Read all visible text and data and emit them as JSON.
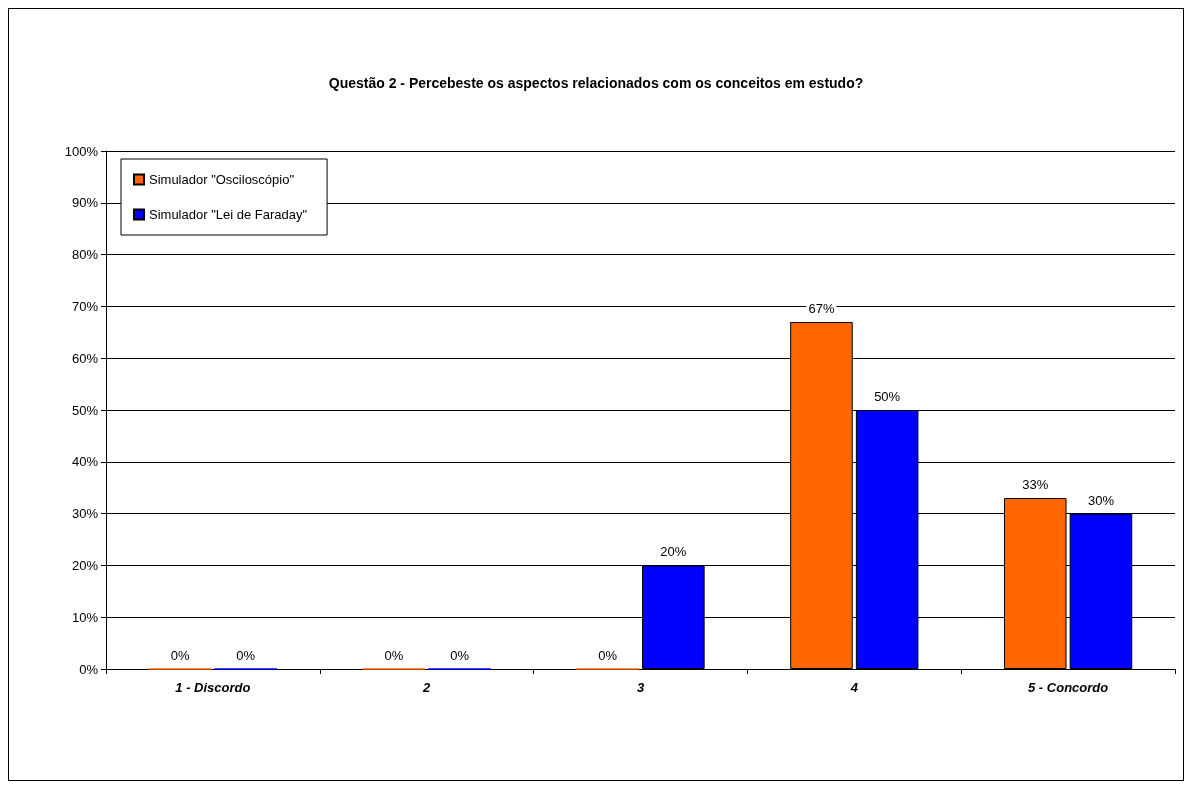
{
  "chart_data": {
    "type": "bar",
    "title": "Questão 2 - Percebeste os aspectos relacionados com os conceitos em estudo?",
    "categories": [
      "1 - Discordo",
      "2",
      "3",
      "4",
      "5 - Concordo"
    ],
    "series": [
      {
        "name": "Simulador \"Osciloscópio\"",
        "color": "#ff6600",
        "values": [
          0,
          0,
          0,
          67,
          33
        ],
        "value_labels": [
          "0%",
          "0%",
          "0%",
          "67%",
          "33%"
        ]
      },
      {
        "name": "Simulador \"Lei de Faraday\"",
        "color": "#0000ff",
        "values": [
          0,
          0,
          20,
          50,
          30
        ],
        "value_labels": [
          "0%",
          "0%",
          "20%",
          "50%",
          "30%"
        ]
      }
    ],
    "ylim": [
      0,
      100
    ],
    "yticks": [
      {
        "value": 0,
        "label": "0%"
      },
      {
        "value": 10,
        "label": "10%"
      },
      {
        "value": 20,
        "label": "20%"
      },
      {
        "value": 30,
        "label": "30%"
      },
      {
        "value": 40,
        "label": "40%"
      },
      {
        "value": 50,
        "label": "50%"
      },
      {
        "value": 60,
        "label": "60%"
      },
      {
        "value": 70,
        "label": "70%"
      },
      {
        "value": 80,
        "label": "80%"
      },
      {
        "value": 90,
        "label": "90%"
      },
      {
        "value": 100,
        "label": "100%"
      }
    ],
    "grid": "y",
    "legend": "top left"
  }
}
